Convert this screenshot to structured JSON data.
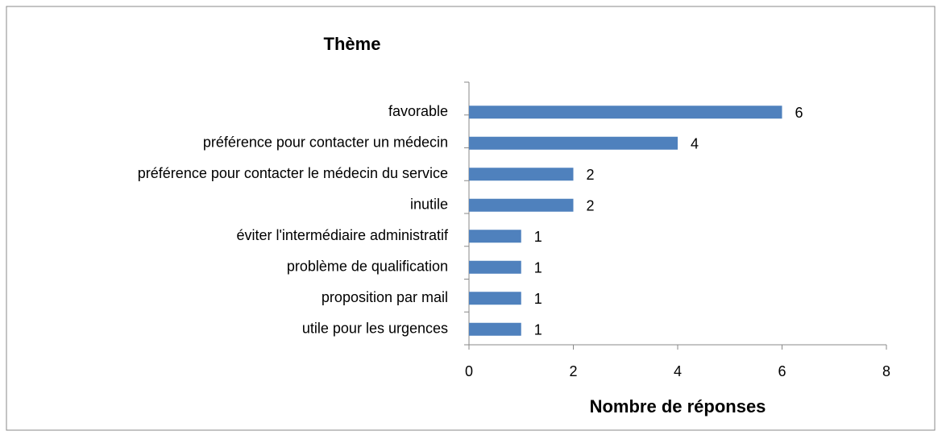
{
  "chart_data": {
    "type": "bar",
    "orientation": "horizontal",
    "title": "Thème",
    "x_label": "Nombre de réponses",
    "categories": [
      "favorable",
      "préférence pour contacter un médecin",
      "préférence pour contacter le médecin du service",
      "inutile",
      "éviter l'intermédiaire administratif",
      "problème de qualification",
      "proposition par mail",
      "utile pour les urgences"
    ],
    "values": [
      6,
      4,
      2,
      2,
      1,
      1,
      1,
      1
    ],
    "color": "#4f81bd",
    "xlim": [
      0,
      8
    ],
    "xticks": [
      0,
      2,
      4,
      6,
      8
    ],
    "grid": false
  }
}
